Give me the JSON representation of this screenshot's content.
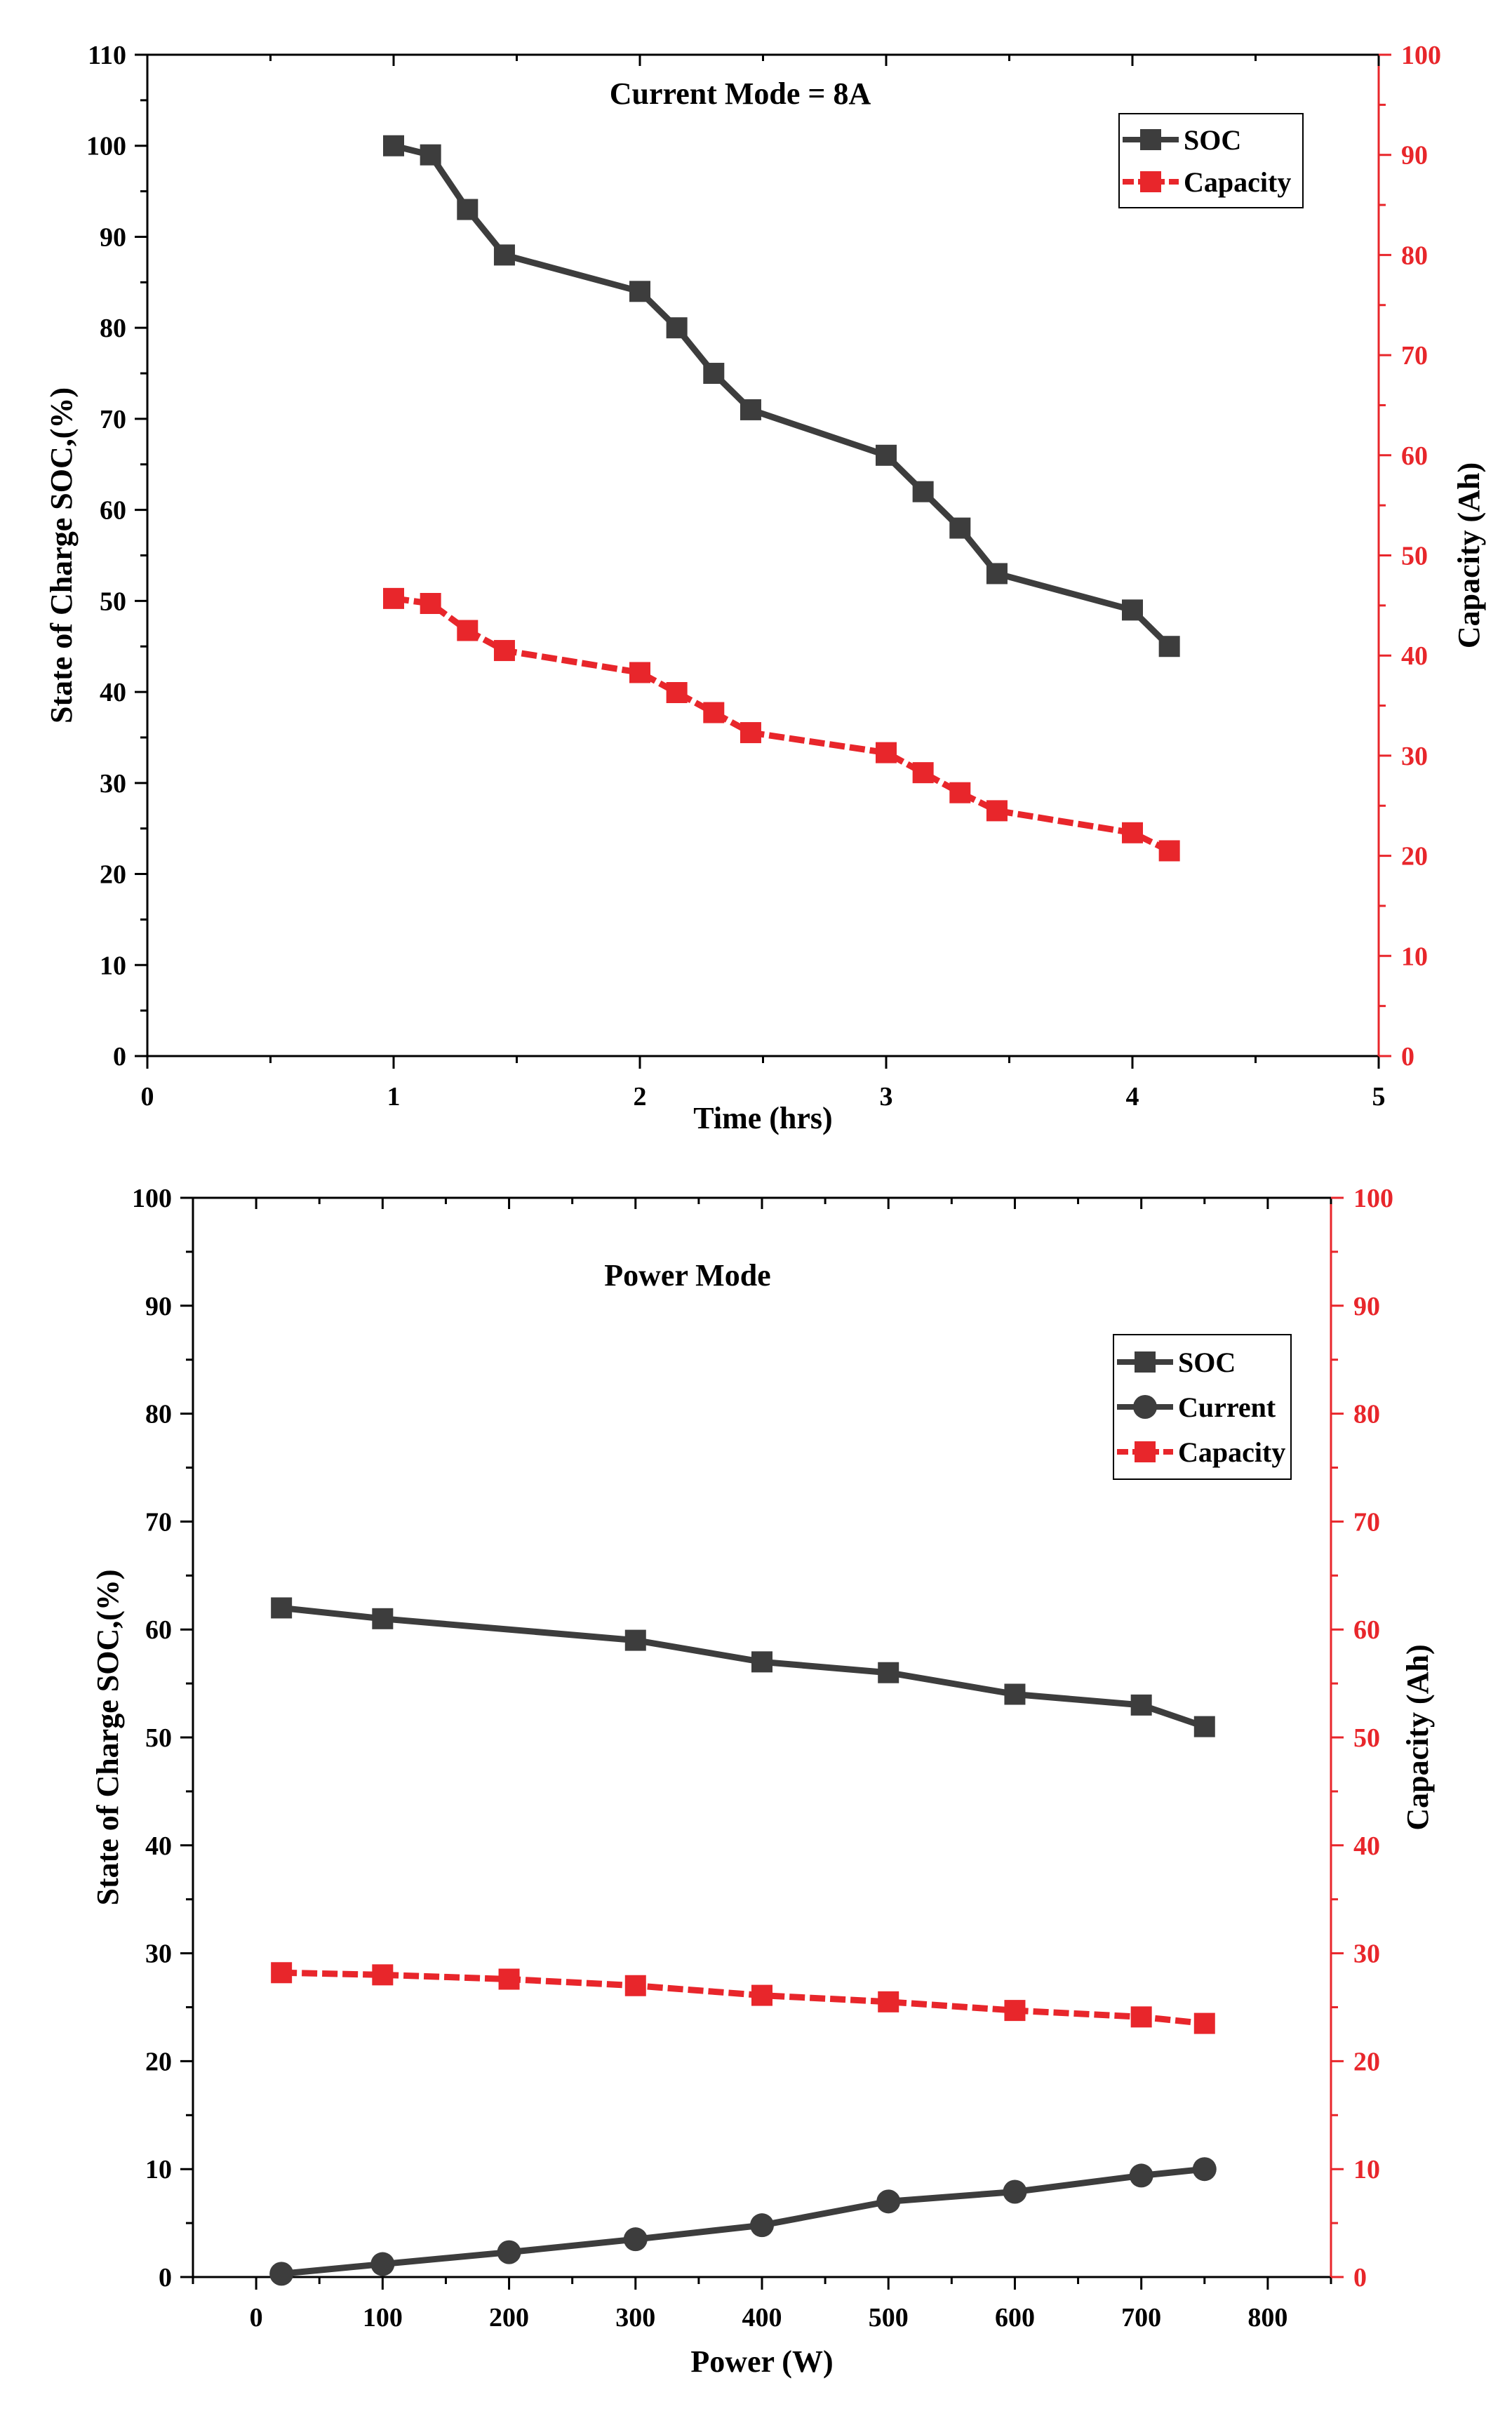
{
  "chart_data": [
    {
      "type": "line",
      "title": "Current Mode = 8A",
      "xlabel": "Time (hrs)",
      "ylabel": "State of Charge SOC,(%)",
      "y2label": "Capacity (Ah)",
      "xlim": [
        0,
        5
      ],
      "ylim": [
        0,
        110
      ],
      "y2lim": [
        0,
        100
      ],
      "xticks": [
        0,
        1,
        2,
        3,
        4,
        5
      ],
      "yticks": [
        0,
        10,
        20,
        30,
        40,
        50,
        60,
        70,
        80,
        90,
        100,
        110
      ],
      "y2ticks": [
        0,
        10,
        20,
        30,
        40,
        50,
        60,
        70,
        80,
        90,
        100
      ],
      "legend_position": "top-right",
      "series": [
        {
          "name": "SOC",
          "axis": "left",
          "color": "#3d3d3d",
          "marker": "square",
          "x": [
            1.0,
            1.15,
            1.3,
            1.45,
            2.0,
            2.15,
            2.3,
            2.45,
            3.0,
            3.15,
            3.3,
            3.45,
            4.0,
            4.15
          ],
          "y": [
            100,
            99,
            93,
            88,
            84,
            80,
            75,
            71,
            66,
            62,
            58,
            53,
            49,
            45
          ]
        },
        {
          "name": "Capacity",
          "axis": "right",
          "color": "#e8262b",
          "marker": "square",
          "dashed": true,
          "x": [
            1.0,
            1.15,
            1.3,
            1.45,
            2.0,
            2.15,
            2.3,
            2.45,
            3.0,
            3.15,
            3.3,
            3.45,
            4.0,
            4.15
          ],
          "y": [
            45.7,
            45.2,
            42.5,
            40.5,
            38.3,
            36.3,
            34.3,
            32.3,
            30.3,
            28.3,
            26.3,
            24.5,
            22.3,
            20.5
          ]
        }
      ]
    },
    {
      "type": "line",
      "title": "Power Mode",
      "xlabel": "Power (W)",
      "ylabel": "State of Charge SOC,(%)",
      "y2label": "Capacity (Ah)",
      "xlim": [
        -50,
        850
      ],
      "ylim": [
        0,
        100
      ],
      "y2lim": [
        0,
        100
      ],
      "xticks": [
        0,
        100,
        200,
        300,
        400,
        500,
        600,
        700,
        800
      ],
      "yticks": [
        0,
        10,
        20,
        30,
        40,
        50,
        60,
        70,
        80,
        90,
        100
      ],
      "y2ticks": [
        0,
        10,
        20,
        30,
        40,
        50,
        60,
        70,
        80,
        90,
        100
      ],
      "legend_position": "top-right",
      "series": [
        {
          "name": "SOC",
          "axis": "left",
          "color": "#3d3d3d",
          "marker": "square",
          "x": [
            20,
            100,
            300,
            400,
            500,
            600,
            700,
            750
          ],
          "y": [
            62,
            61,
            59,
            57,
            56,
            54,
            53,
            51
          ]
        },
        {
          "name": "Current",
          "axis": "left",
          "color": "#3d3d3d",
          "marker": "circle",
          "x": [
            20,
            100,
            200,
            300,
            400,
            500,
            600,
            700,
            750
          ],
          "y": [
            0.3,
            1.2,
            2.3,
            3.5,
            4.8,
            7.0,
            7.9,
            9.4,
            10.0
          ]
        },
        {
          "name": "Capacity",
          "axis": "right",
          "color": "#e8262b",
          "marker": "square",
          "dashed": true,
          "x": [
            20,
            100,
            200,
            300,
            400,
            500,
            600,
            700,
            750
          ],
          "y": [
            28.2,
            28.0,
            27.6,
            27.0,
            26.1,
            25.5,
            24.7,
            24.1,
            23.5
          ]
        }
      ]
    }
  ]
}
